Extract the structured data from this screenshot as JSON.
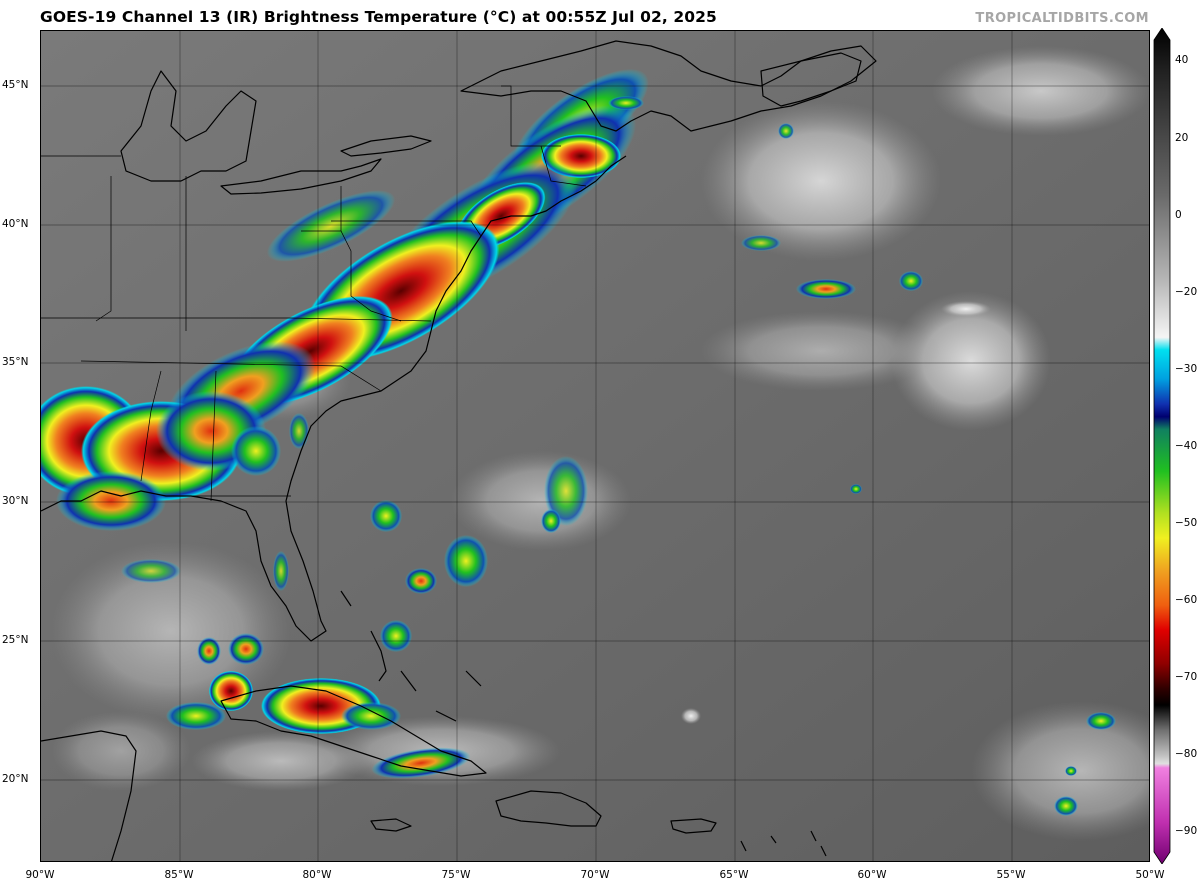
{
  "header": {
    "title": "GOES-19 Channel 13 (IR) Brightness Temperature (°C) at 00:55Z Jul 02, 2025",
    "watermark": "TROPICALTIDBITS.COM"
  },
  "map": {
    "lat_labels": [
      "45°N",
      "40°N",
      "35°N",
      "30°N",
      "25°N",
      "20°N"
    ],
    "lon_labels": [
      "90°W",
      "85°W",
      "80°W",
      "75°W",
      "70°W",
      "65°W",
      "60°W",
      "55°W",
      "50°W"
    ],
    "extent": {
      "lon_min": -90,
      "lon_max": -50,
      "lat_min": 17,
      "lat_max": 47
    }
  },
  "colorbar": {
    "labels": [
      "40",
      "20",
      "0",
      "−20",
      "−30",
      "−40",
      "−50",
      "−60",
      "−70",
      "−80",
      "−90"
    ],
    "range": [
      -90,
      40
    ],
    "colors": {
      "warm": "#2a2a2a",
      "mid": "#bdbdbd",
      "cold_white": "#f5f5f5",
      "cyan": "#00d8e8",
      "blue": "#1030b0",
      "green": "#20c020",
      "yellow": "#f0f020",
      "orange": "#f08020",
      "red": "#e01010",
      "dark_red": "#600000",
      "black": "#000000",
      "magenta": "#d040c0",
      "purple": "#800080"
    }
  }
}
